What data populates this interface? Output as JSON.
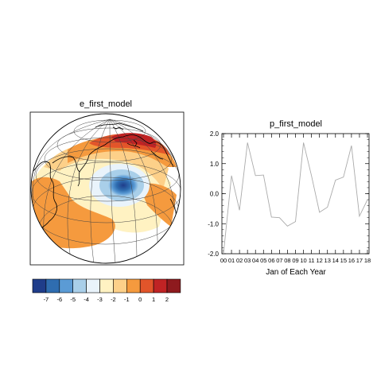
{
  "chart_data": [
    {
      "type": "map",
      "title": "e_first_model",
      "projection": "orthographic",
      "colorbar": {
        "levels": [
          "-7",
          "-6",
          "-5",
          "-4",
          "-3",
          "-2",
          "-1",
          "0",
          "1",
          "2"
        ],
        "colors": [
          "#1f3d8a",
          "#2f6db0",
          "#5b9bd5",
          "#a9cfe9",
          "#e9f3fb",
          "#fff2c2",
          "#fdd089",
          "#f59a3e",
          "#e2552a",
          "#c02324",
          "#8e1a1e"
        ]
      }
    },
    {
      "type": "line",
      "title": "p_first_model",
      "xlabel": "Jan of Each Year",
      "ylabel": "",
      "categories": [
        "00",
        "01",
        "02",
        "03",
        "04",
        "05",
        "06",
        "07",
        "08",
        "09",
        "10",
        "11",
        "12",
        "13",
        "14",
        "15",
        "16",
        "17",
        "18"
      ],
      "values": [
        -2.0,
        0.6,
        -0.55,
        1.7,
        0.6,
        0.62,
        -0.78,
        -0.8,
        -1.08,
        -0.93,
        1.7,
        0.6,
        -0.62,
        -0.45,
        0.45,
        0.55,
        1.6,
        -0.75,
        -0.2
      ],
      "ylim": [
        -2.0,
        2.0
      ],
      "yticks": [
        "-2.0",
        "-1.0",
        "0.0",
        "1.0",
        "2.0"
      ],
      "line_color": "#aaaaaa",
      "grid": false
    }
  ]
}
